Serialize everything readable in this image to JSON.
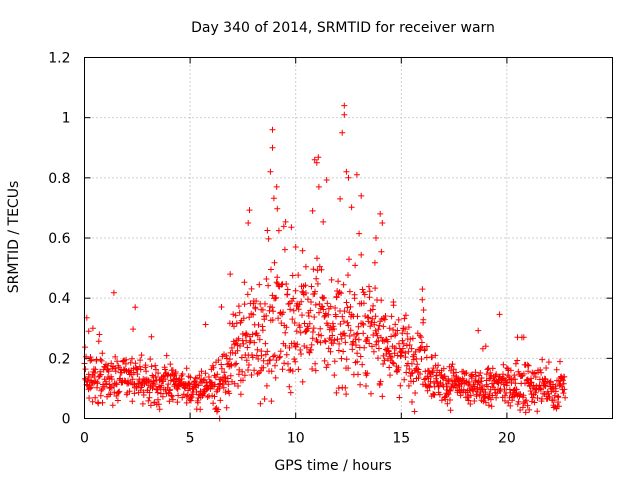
{
  "chart_data": {
    "type": "scatter",
    "title": "Day 340 of 2014, SRMTID for receiver warn",
    "xlabel": "GPS time / hours",
    "ylabel": "SRMTID / TECUs",
    "xlim": [
      0,
      25
    ],
    "ylim": [
      0,
      1.2
    ],
    "xticks": [
      0,
      5,
      10,
      15,
      20
    ],
    "xtick_labels": [
      "0",
      "5",
      "10",
      "15",
      "20"
    ],
    "yticks": [
      0,
      0.2,
      0.4,
      0.6,
      0.8,
      1.0,
      1.2
    ],
    "ytick_labels": [
      "0",
      "0.2",
      "0.4",
      "0.6",
      "0.8",
      "1",
      "1.2"
    ],
    "grid": true,
    "marker": "+",
    "marker_color": "#ff0000",
    "series": [
      {
        "name": "SRMTID",
        "x_range": [
          0.0,
          22.75
        ],
        "profile_hours": [
          0,
          1,
          2,
          3,
          4,
          5,
          6,
          6.5,
          7,
          7.5,
          8,
          8.5,
          9,
          9.5,
          10,
          10.5,
          11,
          11.5,
          12,
          12.5,
          13,
          13.5,
          14,
          14.5,
          15,
          15.5,
          16,
          16.5,
          17,
          18,
          19,
          20,
          21,
          22,
          22.75
        ],
        "profile_median": [
          0.14,
          0.14,
          0.14,
          0.12,
          0.11,
          0.1,
          0.1,
          0.12,
          0.2,
          0.26,
          0.27,
          0.28,
          0.3,
          0.33,
          0.33,
          0.32,
          0.34,
          0.3,
          0.3,
          0.32,
          0.3,
          0.28,
          0.27,
          0.24,
          0.22,
          0.2,
          0.22,
          0.15,
          0.12,
          0.1,
          0.1,
          0.11,
          0.11,
          0.09,
          0.1
        ],
        "profile_spread": [
          0.06,
          0.06,
          0.05,
          0.05,
          0.05,
          0.04,
          0.05,
          0.06,
          0.1,
          0.12,
          0.12,
          0.14,
          0.14,
          0.15,
          0.13,
          0.14,
          0.14,
          0.12,
          0.14,
          0.15,
          0.13,
          0.11,
          0.1,
          0.09,
          0.08,
          0.08,
          0.08,
          0.06,
          0.04,
          0.04,
          0.04,
          0.05,
          0.06,
          0.04,
          0.04
        ],
        "notable_points": [
          [
            0.2,
            0.29
          ],
          [
            0.4,
            0.3
          ],
          [
            2.4,
            0.37
          ],
          [
            6.4,
            0.0
          ],
          [
            6.9,
            0.48
          ],
          [
            7.75,
            0.65
          ],
          [
            8.9,
            0.96
          ],
          [
            8.9,
            0.9
          ],
          [
            8.8,
            0.82
          ],
          [
            9.1,
            0.77
          ],
          [
            10.0,
            0.57
          ],
          [
            10.9,
            0.86
          ],
          [
            11.0,
            0.85
          ],
          [
            11.1,
            0.77
          ],
          [
            10.8,
            0.69
          ],
          [
            12.2,
            0.95
          ],
          [
            12.3,
            1.04
          ],
          [
            12.3,
            1.01
          ],
          [
            12.4,
            0.82
          ],
          [
            12.5,
            0.8
          ],
          [
            12.9,
            0.81
          ],
          [
            12.1,
            0.73
          ],
          [
            13.1,
            0.74
          ],
          [
            14.0,
            0.68
          ],
          [
            14.1,
            0.65
          ],
          [
            13.8,
            0.6
          ],
          [
            16.0,
            0.43
          ],
          [
            19.0,
            0.24
          ],
          [
            20.5,
            0.27
          ],
          [
            20.8,
            0.27
          ]
        ],
        "n_points": 1400
      }
    ]
  }
}
